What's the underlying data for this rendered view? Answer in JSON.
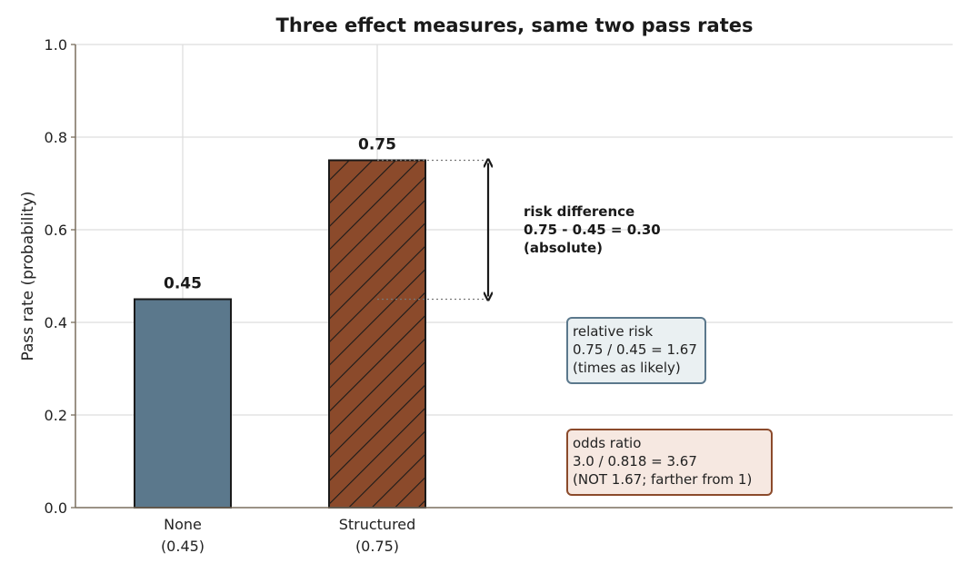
{
  "chart_data": {
    "type": "bar",
    "title": "Three effect measures, same two pass rates",
    "ylabel": "Pass rate (probability)",
    "xlabel": "",
    "ylim": [
      0,
      1.0
    ],
    "yticks": [
      "0.0",
      "0.2",
      "0.4",
      "0.6",
      "0.8",
      "1.0"
    ],
    "ytick_values": [
      0,
      0.2,
      0.4,
      0.6,
      0.8,
      1.0
    ],
    "grid": true,
    "categories": [
      {
        "line1": "None",
        "line2": "(0.45)"
      },
      {
        "line1": "Structured",
        "line2": "(0.75)"
      }
    ],
    "values": [
      0.45,
      0.75
    ],
    "value_labels": [
      "0.45",
      "0.75"
    ],
    "bar_colors": [
      "#5b788c",
      "#8b4a2b"
    ],
    "bar_hatch": [
      false,
      true
    ],
    "annotations": {
      "risk_difference": [
        "risk difference",
        "0.75 - 0.45 = 0.30",
        "(absolute)"
      ],
      "relative_risk": [
        "relative risk",
        "0.75 / 0.45 = 1.67",
        "(times as likely)"
      ],
      "odds_ratio": [
        "odds ratio",
        "3.0 / 0.818 = 3.67",
        "(NOT 1.67; farther from 1)"
      ]
    },
    "colors": {
      "relative_risk_border": "#5b788c",
      "relative_risk_fill": "#eaf0f2",
      "odds_ratio_border": "#8b4a2b",
      "odds_ratio_fill": "#f6e8e1",
      "grid": "#dddddd",
      "axis": "#7a6e5e"
    }
  }
}
